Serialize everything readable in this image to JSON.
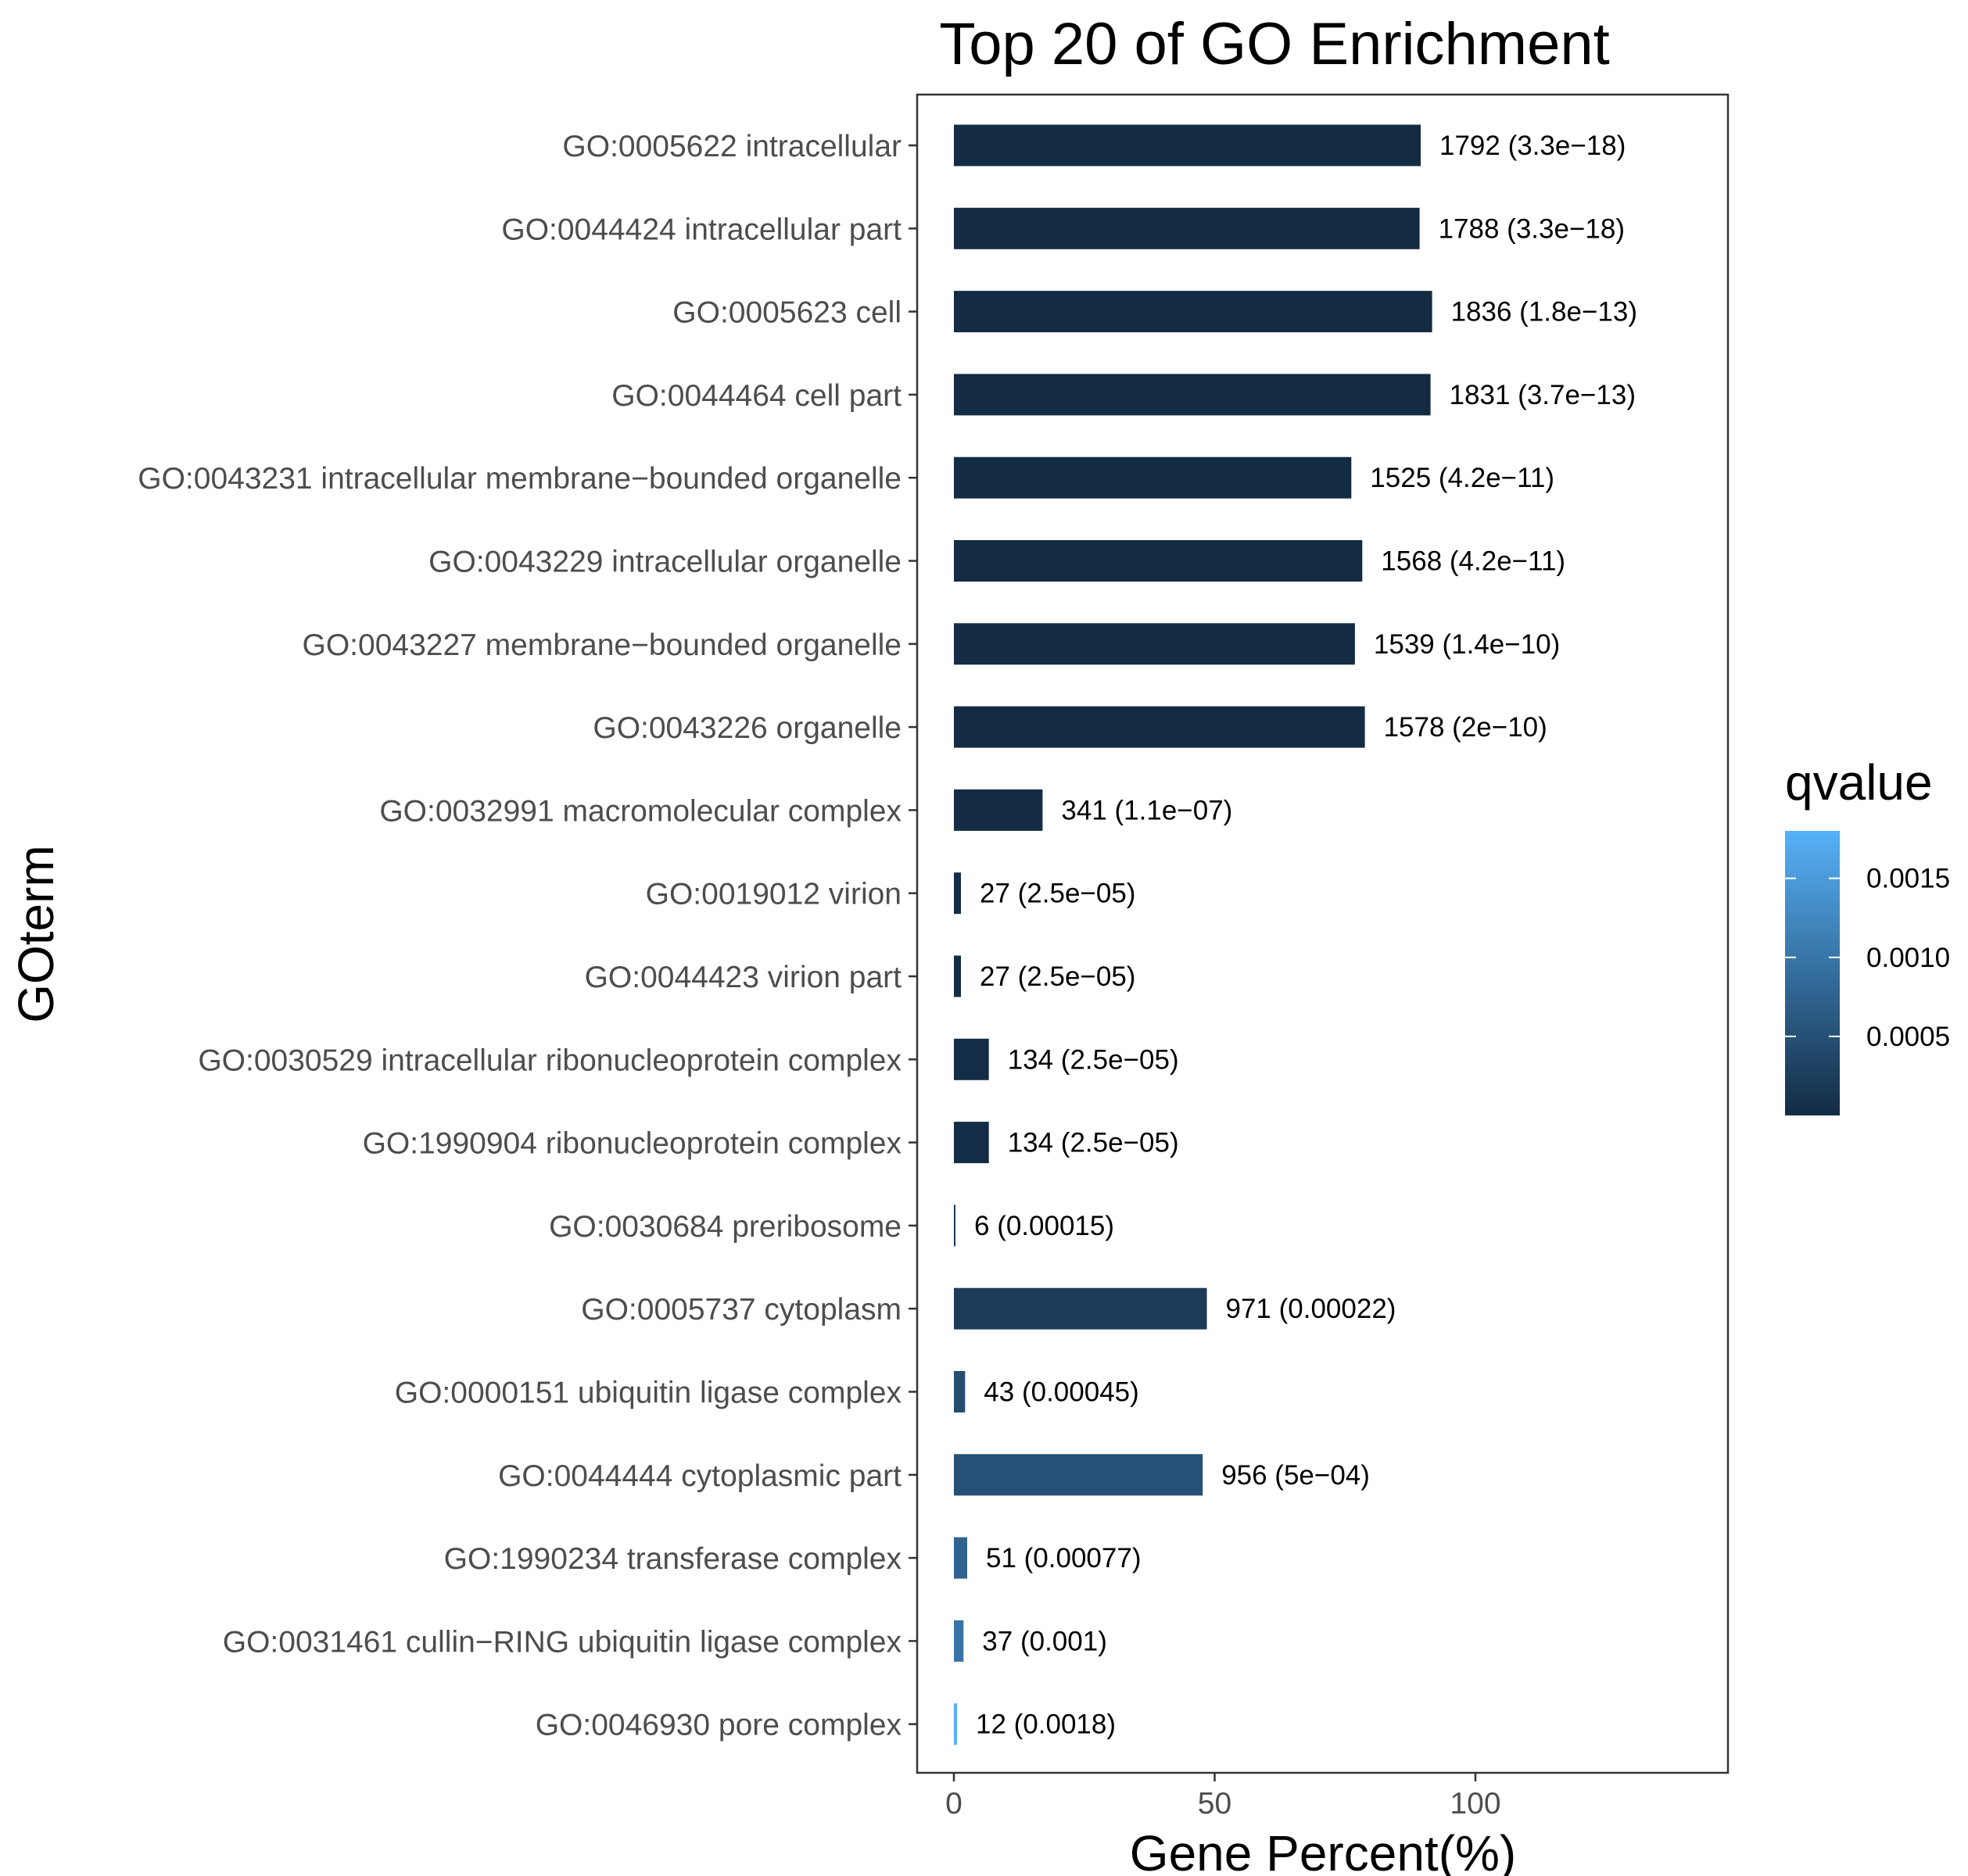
{
  "chart_data": {
    "type": "bar",
    "orientation": "horizontal",
    "title": "Top 20 of GO Enrichment",
    "xlabel": "Gene Percent(%)",
    "ylabel": "GOterm",
    "xlim": [
      -7,
      148
    ],
    "xticks": [
      0,
      50,
      100
    ],
    "grid": false,
    "legend": {
      "title": "qvalue",
      "placement": "right",
      "type": "colorbar",
      "range": [
        0,
        0.0018
      ],
      "ticks": [
        0.0005,
        0.001,
        0.0015
      ],
      "tick_labels": [
        "0.0005",
        "0.0010",
        "0.0015"
      ],
      "color_low": "#132B43",
      "color_high": "#56B1F7"
    },
    "categories": [
      "GO:0005622 intracellular",
      "GO:0044424 intracellular part",
      "GO:0005623 cell",
      "GO:0044464 cell part",
      "GO:0043231 intracellular membrane−bounded organelle",
      "GO:0043229 intracellular organelle",
      "GO:0043227 membrane−bounded organelle",
      "GO:0043226 organelle",
      "GO:0032991 macromolecular complex",
      "GO:0019012 virion",
      "GO:0044423 virion part",
      "GO:0030529 intracellular ribonucleoprotein complex",
      "GO:1990904 ribonucleoprotein complex",
      "GO:0030684 preribosome",
      "GO:0005737 cytoplasm",
      "GO:0000151 ubiquitin ligase complex",
      "GO:0044444 cytoplasmic part",
      "GO:1990234 transferase complex",
      "GO:0031461 cullin−RING ubiquitin ligase complex",
      "GO:0046930 pore complex"
    ],
    "values": [
      89.5,
      89.3,
      91.7,
      91.4,
      76.2,
      78.3,
      76.9,
      78.8,
      17.0,
      1.35,
      1.35,
      6.7,
      6.7,
      0.3,
      48.5,
      2.15,
      47.7,
      2.55,
      1.85,
      0.6
    ],
    "qvalues": [
      3.3e-18,
      3.3e-18,
      1.8e-13,
      3.7e-13,
      4.2e-11,
      4.2e-11,
      1.4e-10,
      2e-10,
      1.1e-07,
      2.5e-05,
      2.5e-05,
      2.5e-05,
      2.5e-05,
      0.00015,
      0.00022,
      0.00045,
      0.0005,
      0.00077,
      0.001,
      0.0018
    ],
    "bar_labels": [
      "1792 (3.3e−18)",
      "1788 (3.3e−18)",
      "1836 (1.8e−13)",
      "1831 (3.7e−13)",
      "1525 (4.2e−11)",
      "1568 (4.2e−11)",
      "1539 (1.4e−10)",
      "1578 (2e−10)",
      "341 (1.1e−07)",
      "27 (2.5e−05)",
      "27 (2.5e−05)",
      "134 (2.5e−05)",
      "134 (2.5e−05)",
      "6 (0.00015)",
      "971 (0.00022)",
      "43 (0.00045)",
      "956 (5e−04)",
      "51 (0.00077)",
      "37 (0.001)",
      "12 (0.0018)"
    ]
  }
}
